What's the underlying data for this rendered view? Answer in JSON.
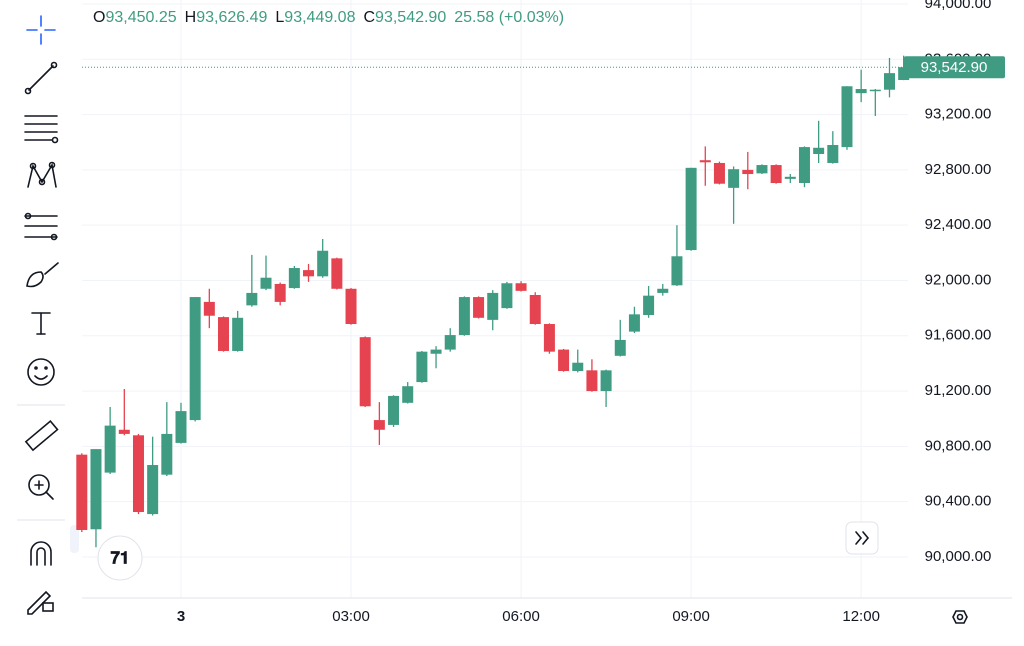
{
  "chart_data": {
    "type": "candlestick",
    "categories": [
      null,
      null,
      null,
      null,
      null,
      null,
      null,
      "3",
      null,
      null,
      null,
      null,
      null,
      null,
      null,
      null,
      null,
      null,
      null,
      "03:00",
      null,
      null,
      null,
      null,
      null,
      null,
      null,
      null,
      null,
      null,
      null,
      "06:00",
      null,
      null,
      null,
      null,
      null,
      null,
      null,
      null,
      null,
      null,
      null,
      "09:00",
      null,
      null,
      null,
      null,
      null,
      null,
      null,
      null,
      null,
      null,
      null,
      "12:00",
      null,
      null,
      null
    ],
    "open": [
      90740,
      90200,
      90610,
      90920,
      90880,
      90310,
      90595,
      90825,
      90990,
      91845,
      91735,
      91490,
      91820,
      91940,
      91975,
      91945,
      92075,
      92030,
      92160,
      91940,
      91590,
      90990,
      90955,
      91115,
      91265,
      91470,
      91500,
      91605,
      91880,
      91715,
      91800,
      91980,
      91895,
      91685,
      91500,
      91345,
      91350,
      91200,
      91455,
      91630,
      91750,
      91910,
      91965,
      92220,
      92870,
      92850,
      92670,
      92800,
      92775,
      92835,
      92735,
      92705,
      92915,
      92850,
      92965,
      93355,
      93375,
      93380,
      93450.25
    ],
    "high": [
      90750,
      90780,
      91085,
      91215,
      90890,
      90870,
      91120,
      91115,
      91880,
      91940,
      91740,
      91780,
      92185,
      92180,
      91985,
      92105,
      92120,
      92300,
      92165,
      91945,
      91595,
      91120,
      91170,
      91265,
      91490,
      91525,
      91655,
      91885,
      91885,
      91930,
      91990,
      91995,
      91915,
      91690,
      91505,
      91500,
      91430,
      91355,
      91715,
      91810,
      91960,
      91975,
      92400,
      92815,
      92970,
      92860,
      92825,
      92930,
      92840,
      92840,
      92770,
      92970,
      93155,
      93080,
      93405,
      93525,
      93385,
      93610,
      93626.49
    ],
    "low": [
      90180,
      90070,
      90600,
      90880,
      90310,
      90300,
      90585,
      90820,
      90980,
      91655,
      91485,
      91485,
      91810,
      91930,
      91820,
      91940,
      91990,
      92020,
      91935,
      91680,
      91085,
      90810,
      90940,
      91110,
      91260,
      91365,
      91485,
      91600,
      91725,
      91640,
      91795,
      91920,
      91680,
      91470,
      91340,
      91335,
      91195,
      91085,
      91450,
      91620,
      91730,
      91890,
      91960,
      92215,
      92685,
      92695,
      92410,
      92660,
      92770,
      92700,
      92705,
      92675,
      92850,
      92845,
      92945,
      93290,
      93190,
      93325,
      93449.08
    ],
    "close": [
      90195,
      90780,
      90950,
      90890,
      90325,
      90665,
      90890,
      91055,
      91880,
      91745,
      91490,
      91730,
      91910,
      92020,
      91845,
      92090,
      92030,
      92215,
      91940,
      91685,
      91090,
      90920,
      91165,
      91235,
      91485,
      91500,
      91605,
      91880,
      91730,
      91910,
      91980,
      91925,
      91685,
      91485,
      91345,
      91405,
      91200,
      91350,
      91570,
      91755,
      91890,
      91940,
      92175,
      92815,
      92855,
      92700,
      92805,
      92770,
      92835,
      92705,
      92750,
      92965,
      92960,
      92980,
      93405,
      93385,
      93380,
      93500,
      93542.9
    ],
    "up_color": "#3f9c83",
    "down_color": "#e5434f",
    "ylim": [
      89703,
      94029
    ],
    "yticks": [
      {
        "value": 90000,
        "label": "90,000.00"
      },
      {
        "value": 90400,
        "label": "90,400.00"
      },
      {
        "value": 90800,
        "label": "90,800.00"
      },
      {
        "value": 91200,
        "label": "91,200.00"
      },
      {
        "value": 91600,
        "label": "91,600.00"
      },
      {
        "value": 92000,
        "label": "92,000.00"
      },
      {
        "value": 92400,
        "label": "92,400.00"
      },
      {
        "value": 92800,
        "label": "92,800.00"
      },
      {
        "value": 93200,
        "label": "93,200.00"
      },
      {
        "value": 93600,
        "label": "93,600.00"
      },
      {
        "value": 94000,
        "label": "94,000.00"
      }
    ],
    "grid": true,
    "last_price": {
      "value": 93542.9,
      "label": "93,542.90"
    },
    "legend_items": [
      {
        "label": "O",
        "value": "93,450.25"
      },
      {
        "label": "H",
        "value": "93,626.49"
      },
      {
        "label": "L",
        "value": "93,449.08"
      },
      {
        "label": "C",
        "value": "93,542.90"
      }
    ],
    "change": "25.58 (+0.03%)"
  }
}
